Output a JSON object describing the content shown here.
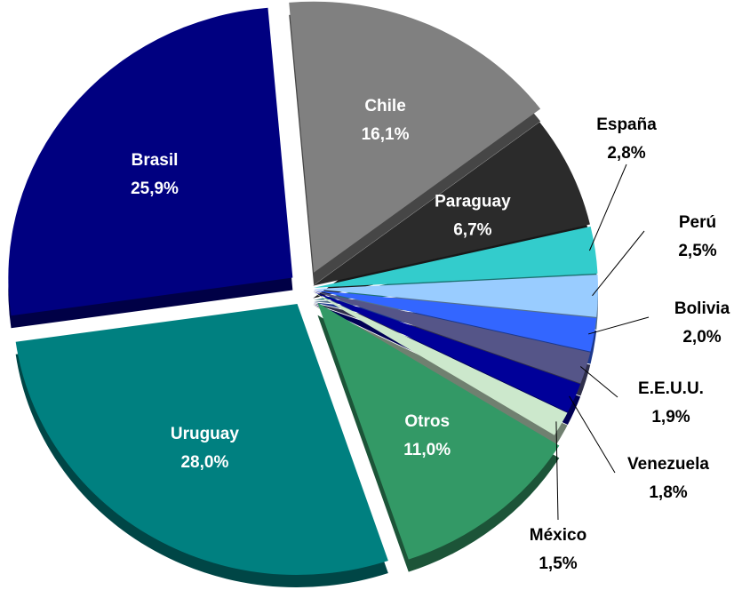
{
  "chart_data": {
    "type": "pie",
    "labels": [
      "Chile",
      "Paraguay",
      "España",
      "Perú",
      "Bolivia",
      "E.E.U.U.",
      "Venezuela",
      "México",
      "Otros",
      "Uruguay",
      "Brasil"
    ],
    "values": [
      16.1,
      6.7,
      2.8,
      2.5,
      2.0,
      1.9,
      1.8,
      1.5,
      11.0,
      28.0,
      25.9
    ],
    "value_labels": [
      "16,1%",
      "6,7%",
      "2,8%",
      "2,5%",
      "2,0%",
      "1,9%",
      "1,8%",
      "1,5%",
      "11,0%",
      "28,0%",
      "25,9%"
    ],
    "colors": [
      "#808080",
      "#2b2b2b",
      "#33cccc",
      "#99ccff",
      "#3366ff",
      "#555588",
      "#000099",
      "#cce8cc",
      "#339966",
      "#008080",
      "#000080"
    ]
  }
}
